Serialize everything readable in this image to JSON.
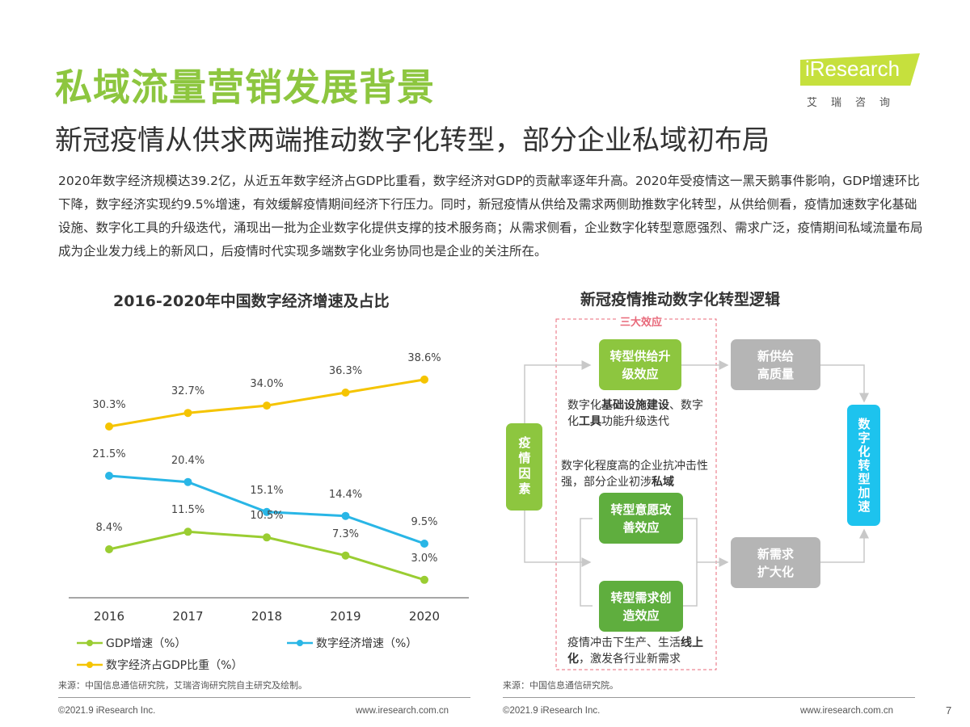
{
  "header": {
    "title": "私域流量营销发展背景",
    "subtitle": "新冠疫情从供求两端推动数字化转型，部分企业私域初布局"
  },
  "logo": {
    "brand": "iResearch",
    "chinese": "艾瑞咨询",
    "color": "#c6e03d"
  },
  "body_text": "2020年数字经济规模达39.2亿，从近五年数字经济占GDP比重看，数字经济对GDP的贡献率逐年升高。2020年受疫情这一黑天鹅事件影响，GDP增速环比下降，数字经济实现约9.5%增速，有效缓解疫情期间经济下行压力。同时，新冠疫情从供给及需求两侧助推数字化转型，从供给侧看，疫情加速数字化基础设施、数字化工具的升级迭代，涌现出一批为企业数字化提供支撑的技术服务商；从需求侧看，企业数字化转型意愿强烈、需求广泛，疫情期间私域流量布局成为企业发力线上的新风口，后疫情时代实现多端数字化业务协同也是企业的关注所在。",
  "chart_data": {
    "type": "line",
    "title": "2016-2020年中国数字经济增速及占比",
    "categories": [
      "2016",
      "2017",
      "2018",
      "2019",
      "2020"
    ],
    "grid": false,
    "legend_position": "bottom",
    "series": [
      {
        "name": "GDP增速（%）",
        "values": [
          8.4,
          11.5,
          10.5,
          7.3,
          3.0
        ],
        "labels": [
          "8.4%",
          "11.5%",
          "10.5%",
          "7.3%",
          "3.0%"
        ],
        "color": "#9acd32"
      },
      {
        "name": "数字经济增速（%）",
        "values": [
          21.5,
          20.4,
          15.1,
          14.4,
          9.5
        ],
        "labels": [
          "21.5%",
          "20.4%",
          "15.1%",
          "14.4%",
          "9.5%"
        ],
        "color": "#29b6e6"
      },
      {
        "name": "数字经济占GDP比重（%）",
        "values": [
          30.3,
          32.7,
          34.0,
          36.3,
          38.6
        ],
        "labels": [
          "30.3%",
          "32.7%",
          "34.0%",
          "36.3%",
          "38.6%"
        ],
        "color": "#f5c400"
      }
    ]
  },
  "diagram": {
    "title": "新冠疫情推动数字化转型逻辑",
    "group_label": "三大效应",
    "cause": "疫情因素",
    "effects": [
      "转型供给升级效应",
      "转型意愿改善效应",
      "转型需求创造效应"
    ],
    "outcomes": [
      "新供给高质量",
      "新需求扩大化"
    ],
    "result": "数字化转型加速",
    "notes": [
      {
        "parts": [
          [
            "数字化",
            false
          ],
          [
            "基础设施建设",
            true
          ],
          [
            "、数字化",
            false
          ],
          [
            "工具",
            true
          ],
          [
            "功能升级迭代",
            false
          ]
        ]
      },
      {
        "parts": [
          [
            "数字化程度高的企业抗冲击性强，部分企业初涉",
            false
          ],
          [
            "私域",
            true
          ]
        ]
      },
      {
        "parts": [
          [
            "疫情冲击下生产、生活",
            false
          ],
          [
            "线上化",
            true
          ],
          [
            "，激发各行业新需求",
            false
          ]
        ]
      }
    ],
    "colors": {
      "green_light": "#8dc63f",
      "green_dark": "#5fae3e",
      "gray": "#b5b5b5",
      "blue": "#1dc3ee",
      "dashed": "#e8697a"
    }
  },
  "sources": {
    "left": "来源：中国信息通信研究院，艾瑞咨询研究院自主研究及绘制。",
    "right": "来源：中国信息通信研究院。"
  },
  "footer": {
    "copyright": "©2021.9 iResearch Inc.",
    "url": "www.iresearch.com.cn",
    "page": "7"
  }
}
